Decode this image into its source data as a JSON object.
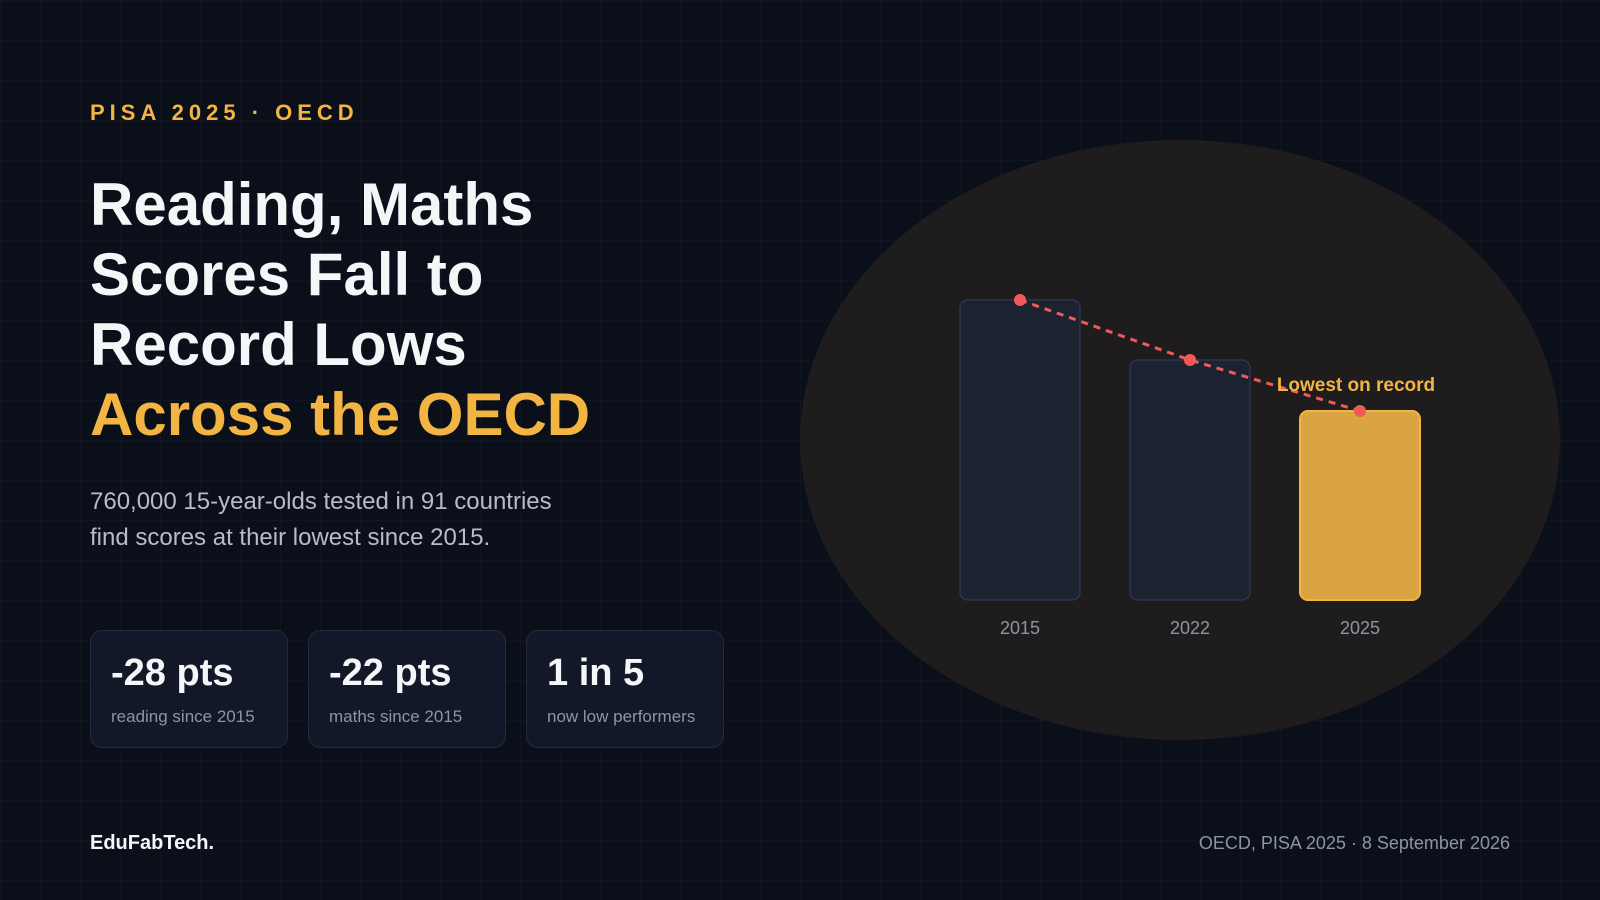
{
  "header": {
    "kicker": "PISA 2025 · OECD"
  },
  "headline": {
    "lines": [
      "Reading, Maths",
      "Scores Fall to",
      "Record Lows"
    ],
    "accent": "Across the OECD"
  },
  "subtitle": {
    "line1": "760,000 15-year-olds tested in 91 countries",
    "line2": "find scores at their lowest since 2015."
  },
  "stats": [
    {
      "value": "-28 pts",
      "label": "reading since 2015"
    },
    {
      "value": "-22 pts",
      "label": "maths since 2015"
    },
    {
      "value": "1 in 5",
      "label": "now low performers"
    }
  ],
  "footer": {
    "brand": "EduFabTech.",
    "source": "OECD, PISA 2025 · 8 September 2026"
  },
  "colors": {
    "accent": "#f2b544",
    "trend_line": "#f05a5a",
    "bar_muted": "#1c2230",
    "bar_highlight": "#d9a441"
  },
  "chart_data": {
    "type": "bar",
    "categories": [
      "2015",
      "2022",
      "2025"
    ],
    "values": [
      100,
      80,
      63
    ],
    "highlight_index": 2,
    "trend_line": true,
    "annotation": {
      "text": "Lowest on record",
      "category": "2025"
    },
    "ylim": [
      0,
      100
    ],
    "grid": false,
    "legend": "none"
  }
}
